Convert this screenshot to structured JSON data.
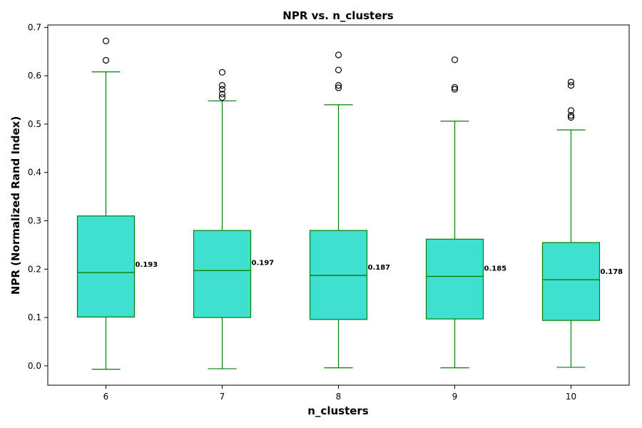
{
  "chart_data": {
    "type": "box",
    "title": "NPR vs. n_clusters",
    "xlabel": "n_clusters",
    "ylabel": "NPR (Normalized Rand Index)",
    "ylim": [
      -0.04,
      0.705
    ],
    "yticks": [
      "0.0",
      "0.1",
      "0.2",
      "0.3",
      "0.4",
      "0.5",
      "0.6",
      "0.7"
    ],
    "ytick_values": [
      0.0,
      0.1,
      0.2,
      0.3,
      0.4,
      0.5,
      0.6,
      0.7
    ],
    "grid": false,
    "colors": {
      "box_fill": "#40e0d0",
      "box_edge": "#008000",
      "outlier": "#000000"
    },
    "categories": [
      "6",
      "7",
      "8",
      "9",
      "10"
    ],
    "boxes": [
      {
        "category": "6",
        "whisker_low": -0.007,
        "q1": 0.101,
        "median": 0.193,
        "q3": 0.31,
        "whisker_high": 0.608,
        "outliers": [
          0.632,
          0.672
        ],
        "median_label": "0.193"
      },
      {
        "category": "7",
        "whisker_low": -0.006,
        "q1": 0.1,
        "median": 0.197,
        "q3": 0.28,
        "whisker_high": 0.548,
        "outliers": [
          0.555,
          0.562,
          0.572,
          0.58,
          0.607
        ],
        "median_label": "0.197"
      },
      {
        "category": "8",
        "whisker_low": -0.004,
        "q1": 0.096,
        "median": 0.187,
        "q3": 0.28,
        "whisker_high": 0.54,
        "outliers": [
          0.575,
          0.58,
          0.612,
          0.643
        ],
        "median_label": "0.187"
      },
      {
        "category": "9",
        "whisker_low": -0.004,
        "q1": 0.097,
        "median": 0.185,
        "q3": 0.262,
        "whisker_high": 0.506,
        "outliers": [
          0.572,
          0.576,
          0.633
        ],
        "median_label": "0.185"
      },
      {
        "category": "10",
        "whisker_low": -0.003,
        "q1": 0.094,
        "median": 0.178,
        "q3": 0.255,
        "whisker_high": 0.488,
        "outliers": [
          0.514,
          0.518,
          0.528,
          0.58,
          0.587
        ],
        "median_label": "0.178"
      }
    ]
  }
}
